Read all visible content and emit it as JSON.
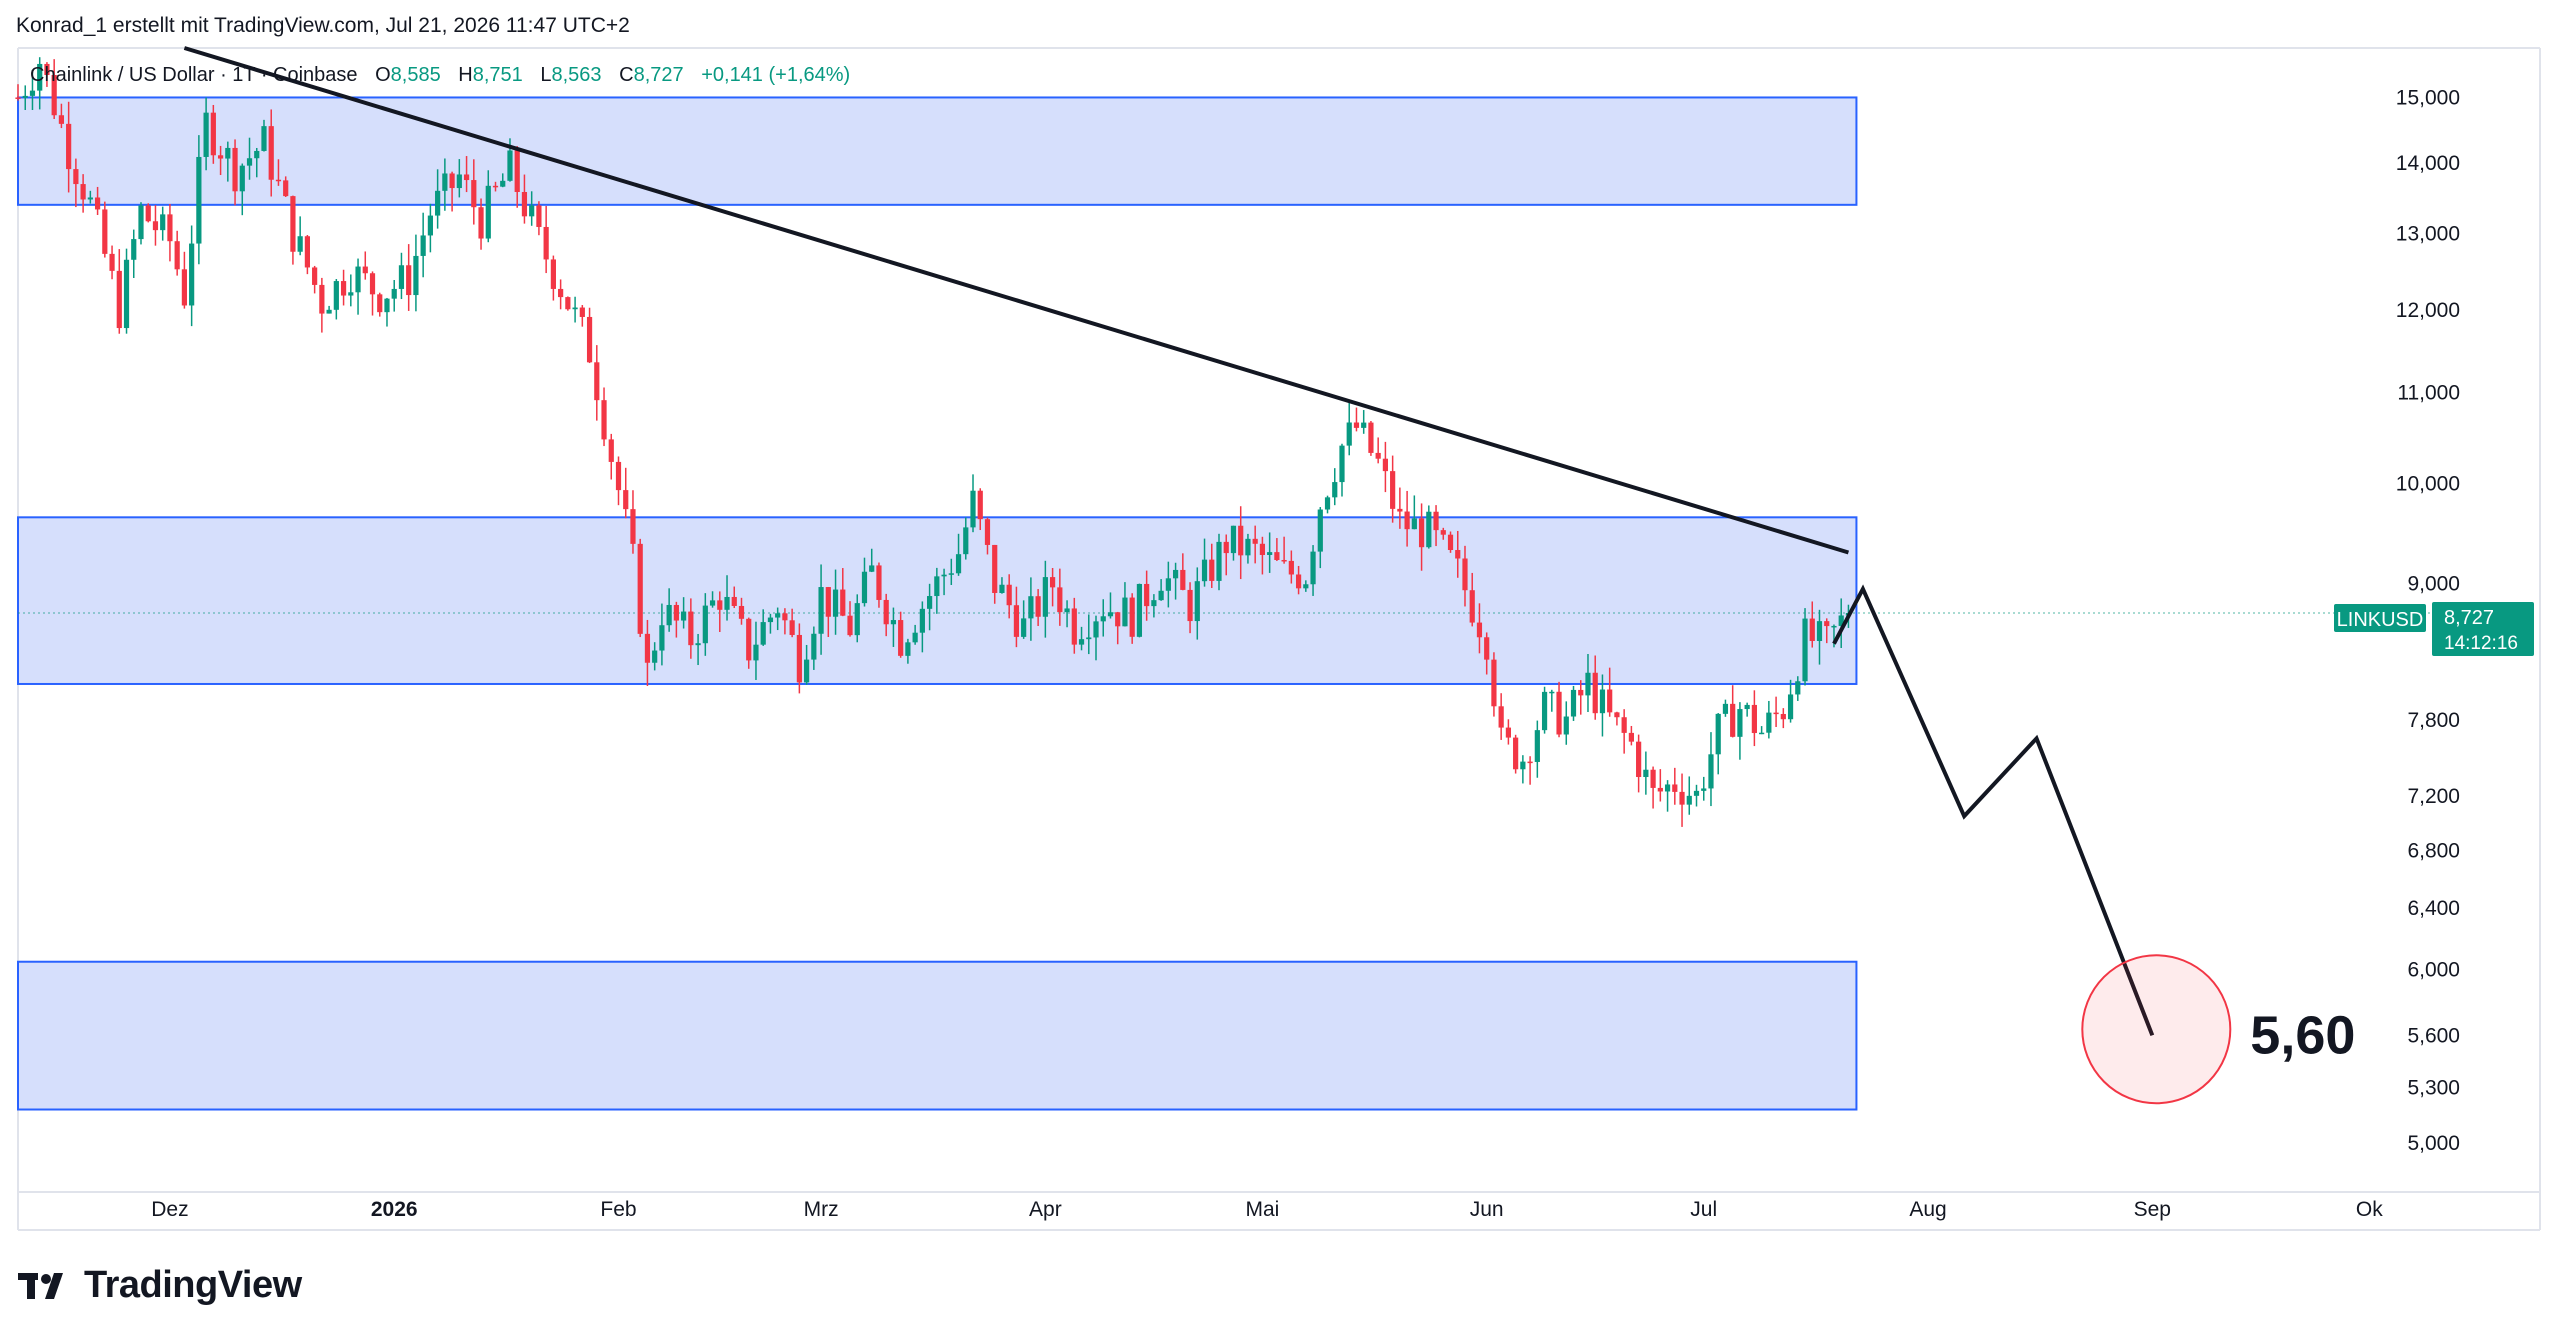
{
  "header": {
    "attribution": "Konrad_1 erstellt mit TradingView.com, Jul 21, 2026 11:47 UTC+2"
  },
  "symbol": {
    "title": "Chainlink / US Dollar · 1T · Coinbase",
    "open_label": "O",
    "open": "8,585",
    "high_label": "H",
    "high": "8,751",
    "low_label": "L",
    "low": "8,563",
    "close_label": "C",
    "close": "8,727",
    "change": "+0,141 (+1,64%)"
  },
  "price_badge": {
    "ticker": "LINKUSD",
    "price": "8,727",
    "countdown": "14:12:16",
    "ticker_color": "#089981"
  },
  "annotation": {
    "target_label": "5,60"
  },
  "brand": {
    "name": "TradingView"
  },
  "colors": {
    "up": "#089981",
    "down": "#f23645",
    "zone_fill": "#d1dcfc",
    "zone_border": "#2962ff",
    "target_circle": "#f23645"
  },
  "chart_data": {
    "type": "candlestick",
    "y_scale": "log",
    "ylim": [
      4.75,
      15.8
    ],
    "xlim": [
      "2025-11-10",
      "2026-10-08"
    ],
    "y_ticks": [
      {
        "value": 15.0,
        "label": "15,000"
      },
      {
        "value": 14.0,
        "label": "14,000"
      },
      {
        "value": 13.0,
        "label": "13,000"
      },
      {
        "value": 12.0,
        "label": "12,000"
      },
      {
        "value": 11.0,
        "label": "11,000"
      },
      {
        "value": 10.0,
        "label": "10,000"
      },
      {
        "value": 9.0,
        "label": "9,000"
      },
      {
        "value": 7.8,
        "label": "7,800"
      },
      {
        "value": 7.2,
        "label": "7,200"
      },
      {
        "value": 6.8,
        "label": "6,800"
      },
      {
        "value": 6.4,
        "label": "6,400"
      },
      {
        "value": 6.0,
        "label": "6,000"
      },
      {
        "value": 5.6,
        "label": "5,600"
      },
      {
        "value": 5.3,
        "label": "5,300"
      },
      {
        "value": 5.0,
        "label": "5,000"
      }
    ],
    "x_ticks": [
      {
        "date": "2025-12-01",
        "label": "Dez",
        "bold": false
      },
      {
        "date": "2026-01-01",
        "label": "2026",
        "bold": true
      },
      {
        "date": "2026-02-01",
        "label": "Feb",
        "bold": false
      },
      {
        "date": "2026-03-01",
        "label": "Mrz",
        "bold": false
      },
      {
        "date": "2026-04-01",
        "label": "Apr",
        "bold": false
      },
      {
        "date": "2026-05-01",
        "label": "Mai",
        "bold": false
      },
      {
        "date": "2026-06-01",
        "label": "Jun",
        "bold": false
      },
      {
        "date": "2026-07-01",
        "label": "Jul",
        "bold": false
      },
      {
        "date": "2026-08-01",
        "label": "Aug",
        "bold": false
      },
      {
        "date": "2026-09-01",
        "label": "Sep",
        "bold": false
      },
      {
        "date": "2026-10-01",
        "label": "Ok",
        "bold": false
      }
    ],
    "last_price": 8.727,
    "candles_start_date": "2025-11-10",
    "candles_end_date": "2026-07-21",
    "candle_anchors": [
      [
        "2025-11-10",
        15.0
      ],
      [
        "2025-11-13",
        15.6
      ],
      [
        "2025-11-17",
        14.2
      ],
      [
        "2025-11-20",
        13.4
      ],
      [
        "2025-11-24",
        12.0
      ],
      [
        "2025-11-27",
        13.3
      ],
      [
        "2025-12-01",
        12.9
      ],
      [
        "2025-12-03",
        12.2
      ],
      [
        "2025-12-06",
        14.6
      ],
      [
        "2025-12-10",
        13.9
      ],
      [
        "2025-12-14",
        14.3
      ],
      [
        "2025-12-18",
        13.0
      ],
      [
        "2025-12-22",
        12.1
      ],
      [
        "2025-12-26",
        12.5
      ],
      [
        "2025-12-30",
        12.2
      ],
      [
        "2026-01-03",
        12.4
      ],
      [
        "2026-01-06",
        13.3
      ],
      [
        "2026-01-10",
        13.8
      ],
      [
        "2026-01-13",
        13.2
      ],
      [
        "2026-01-17",
        13.9
      ],
      [
        "2026-01-21",
        12.9
      ],
      [
        "2026-01-24",
        12.3
      ],
      [
        "2026-01-28",
        11.5
      ],
      [
        "2026-01-31",
        10.3
      ],
      [
        "2026-02-03",
        9.2
      ],
      [
        "2026-02-05",
        8.2
      ],
      [
        "2026-02-07",
        8.75
      ],
      [
        "2026-02-11",
        8.5
      ],
      [
        "2026-02-15",
        8.9
      ],
      [
        "2026-02-19",
        8.4
      ],
      [
        "2026-02-23",
        8.8
      ],
      [
        "2026-02-26",
        8.3
      ],
      [
        "2026-03-01",
        8.9
      ],
      [
        "2026-03-05",
        8.6
      ],
      [
        "2026-03-08",
        9.1
      ],
      [
        "2026-03-12",
        8.5
      ],
      [
        "2026-03-16",
        8.9
      ],
      [
        "2026-03-20",
        9.3
      ],
      [
        "2026-03-22",
        9.8
      ],
      [
        "2026-03-25",
        9.0
      ],
      [
        "2026-03-29",
        8.6
      ],
      [
        "2026-04-02",
        9.0
      ],
      [
        "2026-04-05",
        8.6
      ],
      [
        "2026-04-09",
        8.8
      ],
      [
        "2026-04-13",
        8.7
      ],
      [
        "2026-04-17",
        9.1
      ],
      [
        "2026-04-21",
        8.8
      ],
      [
        "2026-04-26",
        9.4
      ],
      [
        "2026-04-30",
        9.3
      ],
      [
        "2026-05-04",
        9.1
      ],
      [
        "2026-05-07",
        9.1
      ],
      [
        "2026-05-09",
        9.8
      ],
      [
        "2026-05-12",
        10.4
      ],
      [
        "2026-05-14",
        10.6
      ],
      [
        "2026-05-17",
        10.2
      ],
      [
        "2026-05-20",
        9.6
      ],
      [
        "2026-05-24",
        9.5
      ],
      [
        "2026-05-28",
        9.1
      ],
      [
        "2026-06-01",
        8.5
      ],
      [
        "2026-06-03",
        7.6
      ],
      [
        "2026-06-06",
        7.5
      ],
      [
        "2026-06-09",
        7.9
      ],
      [
        "2026-06-12",
        7.8
      ],
      [
        "2026-06-15",
        8.1
      ],
      [
        "2026-06-18",
        7.8
      ],
      [
        "2026-06-21",
        7.6
      ],
      [
        "2026-06-24",
        7.2
      ],
      [
        "2026-06-27",
        7.3
      ],
      [
        "2026-06-30",
        7.2
      ],
      [
        "2026-07-03",
        7.7
      ],
      [
        "2026-07-06",
        7.9
      ],
      [
        "2026-07-09",
        7.7
      ],
      [
        "2026-07-12",
        7.9
      ],
      [
        "2026-07-15",
        8.5
      ],
      [
        "2026-07-18",
        8.45
      ],
      [
        "2026-07-21",
        8.727
      ]
    ],
    "zones": [
      {
        "name": "upper-resistance-zone",
        "from": "2025-11-10",
        "to": "2026-07-21",
        "low": 13.4,
        "high": 15.0
      },
      {
        "name": "middle-range-zone",
        "from": "2025-11-10",
        "to": "2026-07-21",
        "low": 8.1,
        "high": 9.65
      },
      {
        "name": "lower-target-zone",
        "from": "2025-11-10",
        "to": "2026-07-21",
        "low": 5.18,
        "high": 6.05
      }
    ],
    "trendline": [
      [
        "2025-12-03",
        15.8
      ],
      [
        "2026-07-21",
        9.3
      ]
    ],
    "projection_path": [
      [
        "2026-07-19",
        8.45
      ],
      [
        "2026-07-23",
        8.95
      ],
      [
        "2026-08-06",
        7.05
      ],
      [
        "2026-08-16",
        7.65
      ],
      [
        "2026-09-01",
        5.6
      ]
    ],
    "target": {
      "date": "2026-09-01",
      "value": 5.6
    }
  }
}
